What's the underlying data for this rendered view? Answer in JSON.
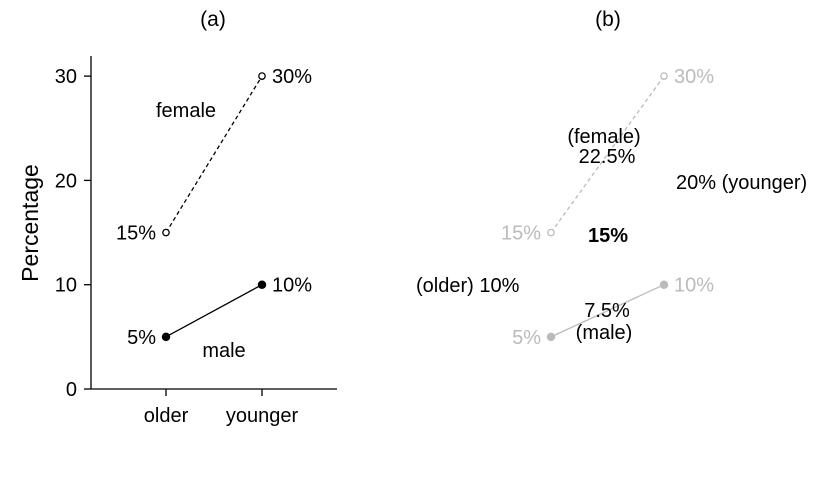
{
  "chart_data": [
    {
      "type": "line",
      "panel_title": "(a)",
      "xlabel": "",
      "ylabel": "Percentage",
      "categories": [
        "older",
        "younger"
      ],
      "yticks": [
        0,
        10,
        20,
        30
      ],
      "ylim": [
        0,
        32
      ],
      "grid": false,
      "series": [
        {
          "name": "female",
          "values": [
            15,
            30
          ],
          "labels": [
            "15%",
            "30%"
          ],
          "line": "dashed",
          "marker": "open-circle",
          "color": "#000000"
        },
        {
          "name": "male",
          "values": [
            5,
            10
          ],
          "labels": [
            "5%",
            "10%"
          ],
          "line": "solid",
          "marker": "filled-circle",
          "color": "#000000"
        }
      ]
    },
    {
      "type": "line",
      "panel_title": "(b)",
      "ylim": [
        0,
        32
      ],
      "axes_visible": false,
      "series": [
        {
          "values": [
            15,
            30
          ],
          "labels": [
            "15%",
            "30%"
          ],
          "line": "dashed",
          "marker": "open-circle",
          "color": "#bbbbbb"
        },
        {
          "values": [
            5,
            10
          ],
          "labels": [
            "5%",
            "10%"
          ],
          "line": "solid",
          "marker": "filled-circle",
          "color": "#bbbbbb"
        }
      ],
      "annotations": [
        {
          "id": "female-label",
          "text": "(female)"
        },
        {
          "id": "female-mean",
          "text": "22.5%"
        },
        {
          "id": "younger-mean",
          "text": "20% (younger)"
        },
        {
          "id": "overall-mean",
          "text": "15%",
          "bold": true
        },
        {
          "id": "older-mean",
          "text": "(older) 10%"
        },
        {
          "id": "male-mean",
          "text": "7.5%"
        },
        {
          "id": "male-label",
          "text": "(male)"
        }
      ]
    }
  ]
}
